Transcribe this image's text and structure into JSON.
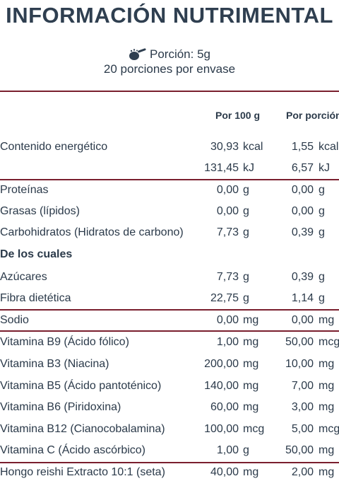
{
  "title": "INFORMACIÓN NUTRIMENTAL",
  "serving": {
    "portion": "Porción: 5g",
    "per_container": "20 porciones por envase",
    "icon": "scoop-icon"
  },
  "columns": {
    "per_100g": "Por 100 g",
    "per_serving": "Por porción"
  },
  "energy": {
    "label": "Contenido energético",
    "kcal": {
      "v1": "30,93",
      "u1": "kcal",
      "v2": "1,55",
      "u2": "kcal"
    },
    "kj": {
      "v1": "131,45",
      "u1": "kJ",
      "v2": "6,57",
      "u2": "kJ"
    }
  },
  "rows": [
    {
      "name": "Proteínas",
      "v1": "0,00",
      "u1": "g",
      "v2": "0,00",
      "u2": "g"
    },
    {
      "name": "Grasas (lípidos)",
      "v1": "0,00",
      "u1": "g",
      "v2": "0,00",
      "u2": "g"
    },
    {
      "name": "Carbohidratos (Hidratos de carbono)",
      "v1": "7,73",
      "u1": "g",
      "v2": "0,39",
      "u2": "g"
    },
    {
      "name": "De los cuales"
    },
    {
      "name": "Azúcares",
      "v1": "7,73",
      "u1": "g",
      "v2": "0,39",
      "u2": "g"
    },
    {
      "name": "Fibra dietética",
      "v1": "22,75",
      "u1": "g",
      "v2": "1,14",
      "u2": "g"
    },
    {
      "name": "Sodio",
      "v1": "0,00",
      "u1": "mg",
      "v2": "0,00",
      "u2": "mg"
    },
    {
      "name": "Vitamina B9 (Ácido fólico)",
      "v1": "1,00",
      "u1": "mg",
      "v2": "50,00",
      "u2": "mcg"
    },
    {
      "name": "Vitamina B3 (Niacina)",
      "v1": "200,00",
      "u1": "mg",
      "v2": "10,00",
      "u2": "mg"
    },
    {
      "name": "Vitamina B5 (Ácido pantoténico)",
      "v1": "140,00",
      "u1": "mg",
      "v2": "7,00",
      "u2": "mg"
    },
    {
      "name": "Vitamina B6 (Piridoxina)",
      "v1": "60,00",
      "u1": "mg",
      "v2": "3,00",
      "u2": "mg"
    },
    {
      "name": "Vitamina B12 (Cianocobalamina)",
      "v1": "100,00",
      "u1": "mcg",
      "v2": "5,00",
      "u2": "mcg"
    },
    {
      "name": "Vitamina C (Ácido ascórbico)",
      "v1": "1,00",
      "u1": "g",
      "v2": "50,00",
      "u2": "mg"
    },
    {
      "name": "Hongo reishi Extracto 10:1 (seta)",
      "v1": "40,00",
      "u1": "mg",
      "v2": "2,00",
      "u2": "mg"
    }
  ],
  "colors": {
    "rule": "#7a1f2e",
    "text": "#2b3a4a"
  }
}
